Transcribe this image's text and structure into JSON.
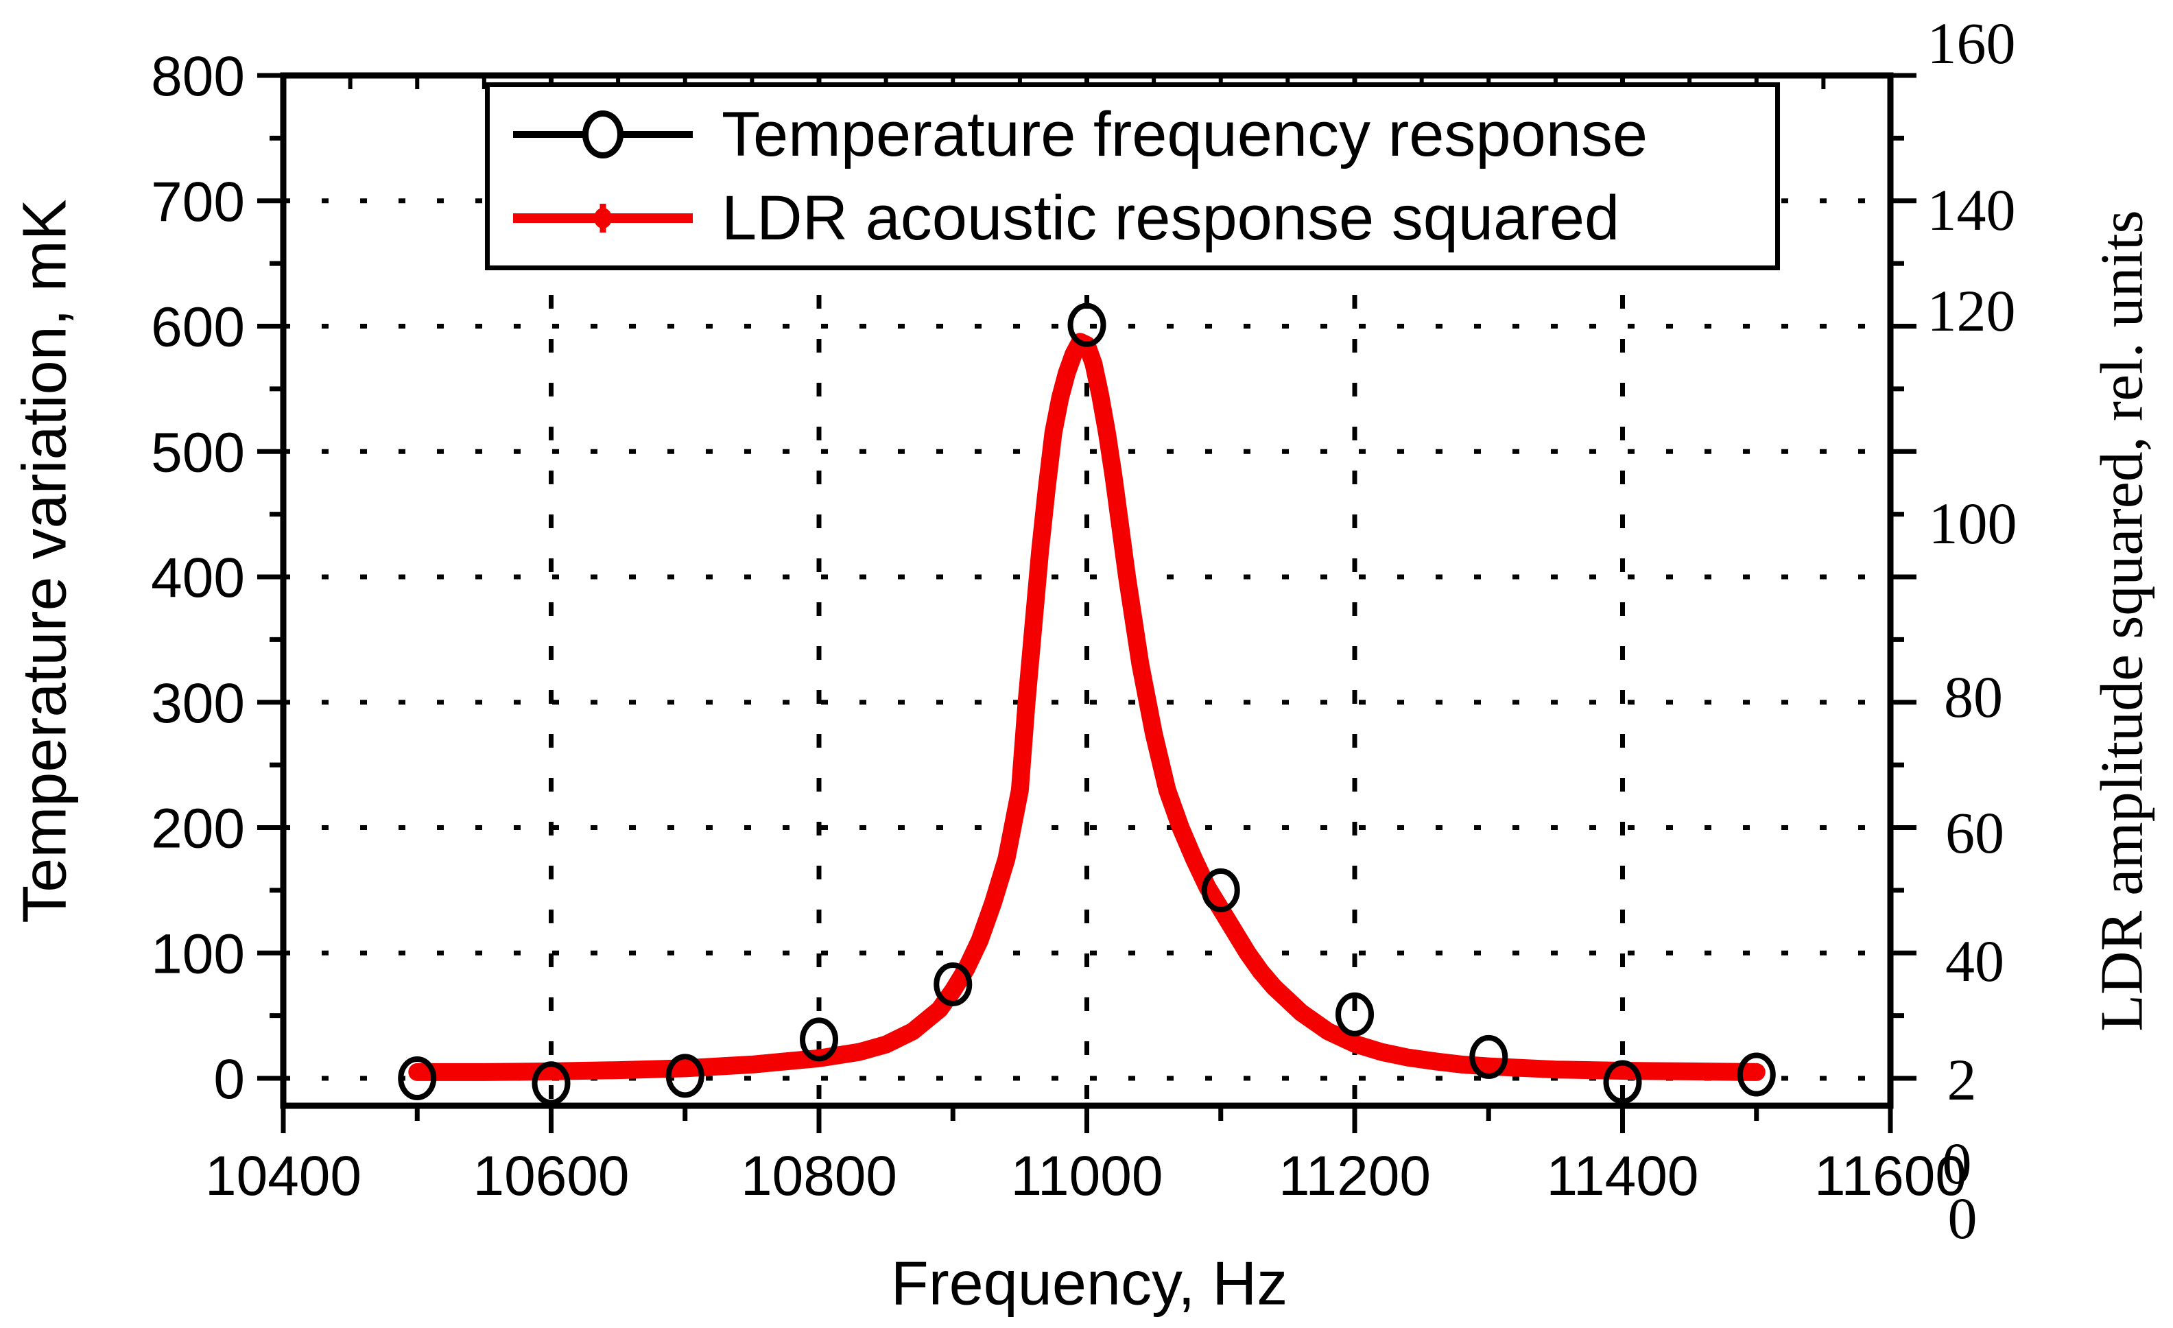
{
  "colors": {
    "series_red": "#f40000",
    "series_black": "#000000",
    "background": "#ffffff"
  },
  "chart_data": {
    "type": "line",
    "title": "",
    "xlabel": "Frequency, Hz",
    "ylabel_left": "Temperature variation, mK",
    "ylabel_right": "LDR amplitude squared, rel. units",
    "xlim": [
      10400,
      11600
    ],
    "ylim_left": [
      0,
      800
    ],
    "ylim_right": [
      0,
      160
    ],
    "grid": "dotted",
    "legend_position": "top-center",
    "x_major_ticks": [
      10400,
      10600,
      10800,
      11000,
      11200,
      11400,
      11600
    ],
    "x_gridlines": [
      10600,
      10800,
      11000,
      11200,
      11400
    ],
    "left_major_ticks": [
      800,
      700,
      600,
      500,
      400,
      300,
      200,
      100,
      0
    ],
    "right_tick_labels": [
      "160",
      "140",
      "120",
      "100",
      "80",
      "60",
      "40",
      "2",
      "0",
      "0"
    ],
    "series": [
      {
        "name": "Temperature frequency response",
        "type": "scatter",
        "marker": "open-circle",
        "color": "#000000",
        "axis": "left",
        "units": "mK",
        "points": [
          [
            10500,
            0
          ],
          [
            10600,
            -4
          ],
          [
            10700,
            2
          ],
          [
            10800,
            31
          ],
          [
            10900,
            75
          ],
          [
            11000,
            601
          ],
          [
            11100,
            150
          ],
          [
            11200,
            51
          ],
          [
            11300,
            17
          ],
          [
            11400,
            -3
          ],
          [
            11500,
            3
          ]
        ]
      },
      {
        "name": "LDR acoustic response squared",
        "type": "line",
        "marker": "dot",
        "color": "#f40000",
        "axis": "right",
        "units": "rel. units",
        "peak_frequency_hz": 11000,
        "peak_value": 117.5,
        "baseline_value": 1.0,
        "points": [
          [
            10500,
            1.0
          ],
          [
            10550,
            1.0
          ],
          [
            10600,
            1.1
          ],
          [
            10650,
            1.3
          ],
          [
            10700,
            1.6
          ],
          [
            10750,
            2.2
          ],
          [
            10800,
            3.2
          ],
          [
            10830,
            4.2
          ],
          [
            10850,
            5.4
          ],
          [
            10870,
            7.5
          ],
          [
            10890,
            11
          ],
          [
            10900,
            14
          ],
          [
            10910,
            17.5
          ],
          [
            10920,
            22
          ],
          [
            10930,
            28
          ],
          [
            10940,
            35
          ],
          [
            10950,
            46
          ],
          [
            10955,
            60
          ],
          [
            10960,
            72
          ],
          [
            10965,
            84
          ],
          [
            10970,
            94
          ],
          [
            10975,
            103
          ],
          [
            10980,
            108.5
          ],
          [
            10985,
            112.5
          ],
          [
            10990,
            115.5
          ],
          [
            10995,
            117.5
          ],
          [
            11000,
            117
          ],
          [
            11005,
            114
          ],
          [
            11010,
            109
          ],
          [
            11015,
            103
          ],
          [
            11020,
            96
          ],
          [
            11030,
            80
          ],
          [
            11040,
            66
          ],
          [
            11050,
            55
          ],
          [
            11060,
            46
          ],
          [
            11070,
            40
          ],
          [
            11080,
            35
          ],
          [
            11090,
            30.5
          ],
          [
            11100,
            27
          ],
          [
            11110,
            23.5
          ],
          [
            11120,
            20
          ],
          [
            11130,
            17
          ],
          [
            11140,
            14.5
          ],
          [
            11150,
            12.5
          ],
          [
            11160,
            10.5
          ],
          [
            11170,
            9
          ],
          [
            11180,
            7.5
          ],
          [
            11190,
            6.5
          ],
          [
            11200,
            5.5
          ],
          [
            11220,
            4.2
          ],
          [
            11240,
            3.3
          ],
          [
            11260,
            2.7
          ],
          [
            11280,
            2.2
          ],
          [
            11300,
            1.9
          ],
          [
            11350,
            1.4
          ],
          [
            11400,
            1.2
          ],
          [
            11450,
            1.1
          ],
          [
            11500,
            1.0
          ]
        ]
      }
    ]
  }
}
